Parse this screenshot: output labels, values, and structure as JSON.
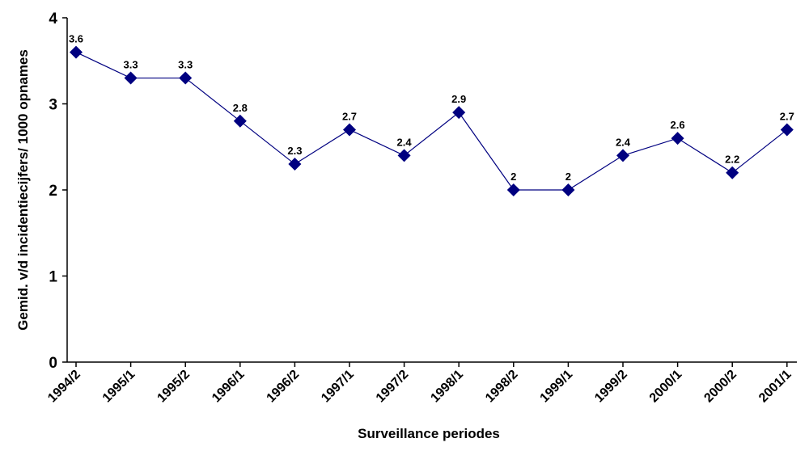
{
  "chart_data": {
    "type": "line",
    "x_label": "Surveillance periodes",
    "y_label": "Gemid. v/d incidentiecijfers/ 1000 opnames",
    "categories": [
      "1994/2",
      "1995/1",
      "1995/2",
      "1996/1",
      "1996/2",
      "1997/1",
      "1997/2",
      "1998/1",
      "1998/2",
      "1999/1",
      "1999/2",
      "2000/1",
      "2000/2",
      "2001/1"
    ],
    "values": [
      3.6,
      3.3,
      3.3,
      2.8,
      2.3,
      2.7,
      2.4,
      2.9,
      2,
      2,
      2.4,
      2.6,
      2.2,
      2.7
    ],
    "color": "#000080",
    "ylim": [
      0,
      4
    ],
    "yticks": [
      0,
      1,
      2,
      3,
      4
    ],
    "grid": false
  }
}
